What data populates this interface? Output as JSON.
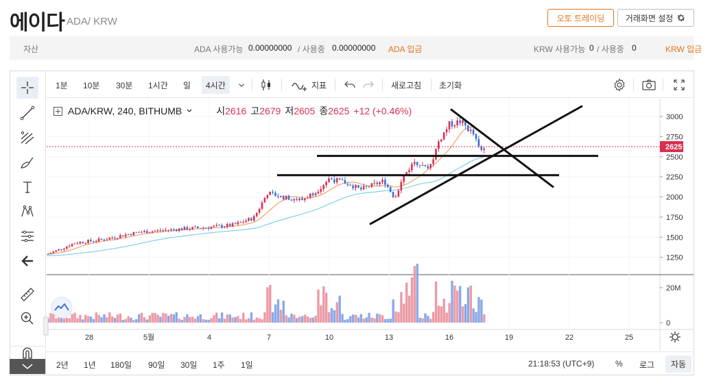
{
  "header": {
    "coin_name": "에이다",
    "pair": "ADA/ KRW",
    "auto_trading_label": "오토 트레이딩",
    "screen_settings_label": "거래화면 설정"
  },
  "asset_bar": {
    "label": "자산",
    "ada_available_label": "ADA 사용가능",
    "ada_available_value": "0.00000000",
    "ada_in_use_label": "/ 사용중",
    "ada_in_use_value": "0.00000000",
    "ada_deposit_label": "ADA 입금",
    "krw_available_label": "KRW 사용가능",
    "krw_available_value": "0",
    "krw_in_use_label": "/ 사용중",
    "krw_in_use_value": "0",
    "krw_deposit_label": "KRW 입금"
  },
  "toolbar": {
    "timeframes": [
      "1분",
      "10분",
      "30분",
      "1시간",
      "일",
      "4시간"
    ],
    "active_timeframe": "4시간",
    "indicators_label": "지표",
    "refresh_label": "새로고침",
    "reset_label": "초기화"
  },
  "legend": {
    "symbol": "ADA/KRW, 240, BITHUMB",
    "open_label": "시",
    "open": "2616",
    "high_label": "고",
    "high": "2679",
    "low_label": "저",
    "low": "2605",
    "close_label": "종",
    "close": "2625",
    "change": "+12 (+0.46%)"
  },
  "price_axis": {
    "ticks": [
      "3000",
      "2750",
      "2500",
      "2250",
      "2000",
      "1750",
      "1500",
      "1250"
    ],
    "last_price_label": "2625"
  },
  "volume_axis": {
    "ticks": [
      "20M",
      "0"
    ]
  },
  "time_axis": {
    "ticks": [
      "28",
      "5월",
      "4",
      "7",
      "10",
      "13",
      "16",
      "19",
      "22",
      "25"
    ]
  },
  "bottom_bar": {
    "ranges": [
      "2년",
      "1년",
      "180일",
      "90일",
      "30일",
      "1주",
      "1일"
    ],
    "clock": "21:18:53 (UTC+9)",
    "percent_label": "%",
    "log_label": "로그",
    "auto_label": "자동"
  },
  "colors": {
    "up": "#d9304f",
    "down": "#3b6fd8",
    "ma_short": "#f0a36a",
    "ma_long": "#7fd0e8",
    "accent": "#e2741c"
  },
  "chart_data": {
    "type": "candlestick",
    "symbol": "ADA/KRW",
    "interval": "240",
    "ylim": [
      1100,
      3150
    ],
    "y_ticks": [
      1250,
      1500,
      1750,
      2000,
      2250,
      2500,
      2750,
      3000
    ],
    "last_price": 2625,
    "drawn_lines": [
      {
        "type": "horizontal",
        "price": 2510
      },
      {
        "type": "horizontal",
        "price": 2270
      },
      {
        "type": "trend",
        "start_price": 1660,
        "end_price": 3130
      },
      {
        "type": "trend",
        "start_price": 3090,
        "end_price": 2120
      }
    ]
  }
}
